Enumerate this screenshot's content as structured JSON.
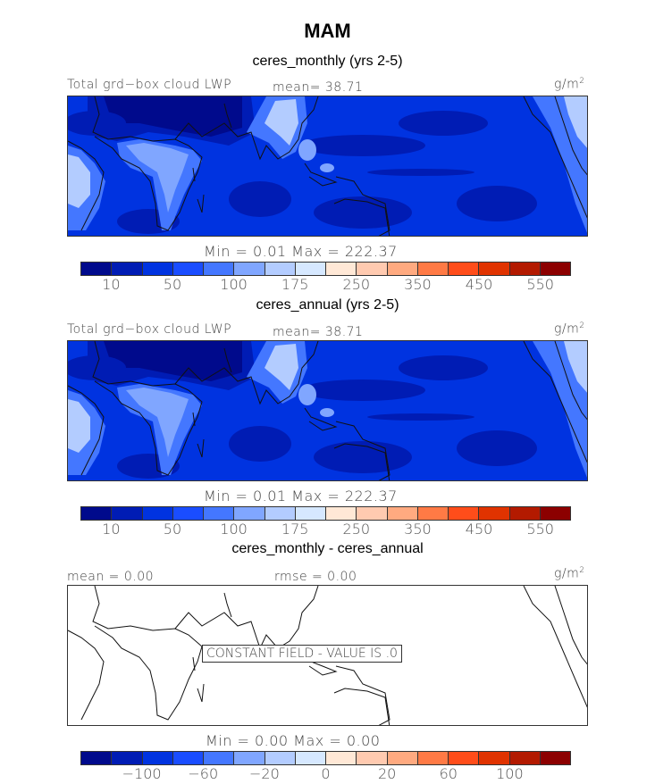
{
  "title": "MAM",
  "colors": [
    "#000a8c",
    "#001cb4",
    "#0033e0",
    "#1a4dff",
    "#4477ff",
    "#80a6ff",
    "#b3ccff",
    "#d6e8ff",
    "#ffe8d6",
    "#ffcab0",
    "#ffaa80",
    "#ff7a45",
    "#ff4d1a",
    "#e03300",
    "#b31a00",
    "#8c0000"
  ],
  "panels": [
    {
      "subtitle": "ceres_monthly (yrs 2-5)",
      "left_label": "Total grd−box cloud LWP",
      "center_label": "mean=  38.71",
      "units": "g/m",
      "units_sup": "2",
      "minmax": "Min =    0.01  Max =  222.37",
      "filled": true
    },
    {
      "subtitle": "ceres_annual (yrs 2-5)",
      "left_label": "Total grd−box cloud LWP",
      "center_label": "mean=  38.71",
      "units": "g/m",
      "units_sup": "2",
      "minmax": "Min =    0.01  Max =  222.37",
      "filled": true
    },
    {
      "subtitle": "ceres_monthly - ceres_annual",
      "left_label": "mean =   0.00",
      "center_label": "rmse =   0.00",
      "units": "g/m",
      "units_sup": "2",
      "minmax": "Min =    0.00  Max =    0.00",
      "filled": false,
      "notice": "CONSTANT FIELD - VALUE IS .0"
    }
  ],
  "colorbar_levels": [
    "10",
    "50",
    "100",
    "175",
    "250",
    "350",
    "450",
    "550"
  ],
  "diff_colorbar_levels": [
    "−100",
    "−60",
    "−20",
    "0",
    "20",
    "60",
    "100"
  ]
}
